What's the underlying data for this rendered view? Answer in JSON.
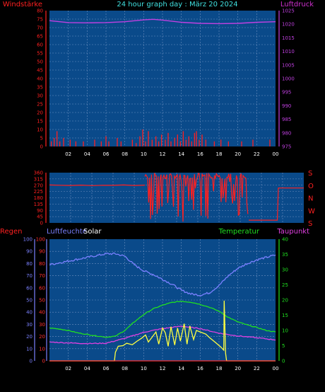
{
  "header": {
    "title": "24 hour graph day : März 20 2024",
    "left_label": "Windstärke",
    "right_label": "Luftdruck"
  },
  "bottom_labels": {
    "regen": "Regen",
    "luftfeuchte": "Luftfeuchte",
    "solar": "Solar",
    "temperatur": "Temperatur",
    "taupunkt": "Taupunkt"
  },
  "direction_labels": [
    "S",
    "O",
    "N",
    "W",
    "S"
  ],
  "colors": {
    "background": "#000000",
    "plot_bg": "#0a4a8a",
    "grid": "#6d8fbf",
    "wind": "#ff2020",
    "pressure": "#c040e0",
    "direction": "#ff2020",
    "humidity": "#7a80ff",
    "solar": "#ffff40",
    "temperature": "#20e020",
    "dewpoint": "#e040e0",
    "rain": "#ff3030"
  },
  "chart_data": [
    {
      "type": "bar",
      "title": "24 hour graph day : März 20 2024",
      "x_ticks": [
        "02",
        "04",
        "06",
        "08",
        "10",
        "12",
        "14",
        "16",
        "18",
        "20",
        "22",
        "00"
      ],
      "x_range_hours": [
        0,
        24
      ],
      "grid": true,
      "y_left": {
        "label": "Windstärke",
        "ticks": [
          0,
          5,
          10,
          15,
          20,
          25,
          30,
          35,
          40,
          45,
          50,
          55,
          60,
          65,
          70,
          75,
          80
        ],
        "range": [
          0,
          80
        ]
      },
      "y_right": {
        "label": "Luftdruck",
        "ticks": [
          975,
          980,
          985,
          990,
          995,
          1000,
          1005,
          1010,
          1015,
          1020,
          1025
        ],
        "range": [
          975,
          1025
        ]
      },
      "series": [
        {
          "name": "Windstärke",
          "type": "bar",
          "axis": "left",
          "points": [
            [
              0.2,
              3
            ],
            [
              0.5,
              5
            ],
            [
              0.8,
              9
            ],
            [
              1.1,
              3
            ],
            [
              1.5,
              5
            ],
            [
              2.2,
              4
            ],
            [
              2.8,
              3
            ],
            [
              3.6,
              3
            ],
            [
              4.8,
              4
            ],
            [
              5.5,
              3
            ],
            [
              6,
              6
            ],
            [
              6.3,
              3
            ],
            [
              7.2,
              5
            ],
            [
              7.6,
              3
            ],
            [
              8.8,
              4
            ],
            [
              9.2,
              2
            ],
            [
              9.6,
              6
            ],
            [
              9.9,
              10
            ],
            [
              10.2,
              3
            ],
            [
              10.5,
              9
            ],
            [
              10.9,
              4
            ],
            [
              11.3,
              6
            ],
            [
              11.6,
              3
            ],
            [
              11.9,
              7
            ],
            [
              12.3,
              4
            ],
            [
              12.6,
              8
            ],
            [
              12.9,
              3
            ],
            [
              13.3,
              5
            ],
            [
              13.6,
              7
            ],
            [
              13.9,
              3
            ],
            [
              14.2,
              9
            ],
            [
              14.5,
              4
            ],
            [
              14.8,
              6
            ],
            [
              15.1,
              3
            ],
            [
              15.4,
              8
            ],
            [
              15.6,
              9
            ],
            [
              15.9,
              4
            ],
            [
              16.2,
              7
            ],
            [
              16.6,
              4
            ],
            [
              17.5,
              3
            ],
            [
              18.2,
              4
            ],
            [
              19,
              3
            ],
            [
              20.4,
              3
            ],
            [
              21.6,
              4
            ],
            [
              23.4,
              4
            ]
          ]
        },
        {
          "name": "Luftdruck",
          "type": "line",
          "axis": "right",
          "points": [
            [
              0,
              1021.3
            ],
            [
              2,
              1020.6
            ],
            [
              4,
              1020.5
            ],
            [
              6,
              1020.6
            ],
            [
              8,
              1020.9
            ],
            [
              10,
              1021.6
            ],
            [
              11,
              1021.8
            ],
            [
              12,
              1021.5
            ],
            [
              14,
              1020.7
            ],
            [
              16,
              1020.3
            ],
            [
              18,
              1020.2
            ],
            [
              20,
              1020.3
            ],
            [
              22,
              1020.7
            ],
            [
              24,
              1020.9
            ]
          ]
        }
      ]
    },
    {
      "type": "line",
      "x_range_hours": [
        0,
        24
      ],
      "grid": true,
      "y_left": {
        "ticks": [
          0,
          45,
          90,
          135,
          180,
          225,
          270,
          315,
          360
        ],
        "range": [
          0,
          360
        ]
      },
      "y_right": {
        "labels": [
          "S",
          "O",
          "N",
          "W",
          "S"
        ]
      },
      "series": [
        {
          "name": "Windrichtung",
          "points": [
            [
              0,
              272
            ],
            [
              1,
              270
            ],
            [
              2,
              268
            ],
            [
              3,
              271
            ],
            [
              4,
              267
            ],
            [
              5,
              270
            ],
            [
              6,
              269
            ],
            [
              7,
              272
            ],
            [
              8,
              268
            ],
            [
              9,
              271
            ],
            [
              9.6,
              275
            ],
            [
              10,
              285
            ],
            [
              11,
              300
            ],
            [
              12,
              290
            ],
            [
              13,
              300
            ],
            [
              14,
              295
            ],
            [
              15,
              290
            ],
            [
              16,
              300
            ],
            [
              17,
              295
            ],
            [
              18,
              300
            ],
            [
              18.7,
              290
            ],
            [
              18.8,
              20
            ],
            [
              20,
              20
            ],
            [
              21,
              20
            ],
            [
              21.5,
              20
            ],
            [
              21.6,
              250
            ],
            [
              22,
              250
            ],
            [
              23,
              250
            ],
            [
              24,
              250
            ]
          ],
          "scatter_band": {
            "from_hour": 9,
            "to_hour": 18.8,
            "min": 0,
            "max": 355
          }
        }
      ]
    },
    {
      "type": "line",
      "x_ticks": [
        "02",
        "04",
        "06",
        "08",
        "10",
        "12",
        "14",
        "16",
        "18",
        "20",
        "22",
        "00"
      ],
      "x_range_hours": [
        0,
        24
      ],
      "grid": true,
      "y_axes": {
        "regen": {
          "label": "Regen",
          "ticks": [
            0,
            10,
            20,
            30,
            40,
            50,
            60,
            70,
            80,
            90,
            100
          ],
          "range": [
            0,
            100
          ]
        },
        "luftfeuchte": {
          "label": "Luftfeuchte",
          "ticks": [
            0,
            10,
            20,
            30,
            40,
            50,
            60,
            70,
            80,
            90,
            100
          ],
          "range": [
            0,
            100
          ]
        },
        "temperatur": {
          "label": "Temperatur",
          "ticks": [
            0,
            5,
            10,
            15,
            20,
            25,
            30,
            35,
            40
          ],
          "range": [
            0,
            40
          ]
        }
      },
      "series": [
        {
          "name": "Luftfeuchte",
          "axis": "luftfeuchte",
          "points": [
            [
              0,
              79
            ],
            [
              2,
              82
            ],
            [
              4,
              85
            ],
            [
              6,
              88
            ],
            [
              7,
              88
            ],
            [
              8,
              86
            ],
            [
              9,
              79
            ],
            [
              10,
              74
            ],
            [
              11,
              71
            ],
            [
              12,
              67
            ],
            [
              13,
              63
            ],
            [
              14,
              58
            ],
            [
              15,
              55
            ],
            [
              16,
              54
            ],
            [
              17,
              56
            ],
            [
              18,
              62
            ],
            [
              19,
              70
            ],
            [
              20,
              76
            ],
            [
              21,
              80
            ],
            [
              22,
              83
            ],
            [
              23,
              85
            ],
            [
              24,
              87
            ]
          ]
        },
        {
          "name": "Temperatur",
          "axis": "temperatur",
          "points": [
            [
              0,
              10.8
            ],
            [
              1,
              10.5
            ],
            [
              2,
              10
            ],
            [
              3,
              9.2
            ],
            [
              4,
              8.7
            ],
            [
              5,
              8.2
            ],
            [
              6,
              7.8
            ],
            [
              7,
              8.1
            ],
            [
              8,
              10
            ],
            [
              9,
              12.8
            ],
            [
              10,
              15.2
            ],
            [
              11,
              17.1
            ],
            [
              12,
              18.3
            ],
            [
              13,
              19.2
            ],
            [
              14,
              19.6
            ],
            [
              15,
              19.3
            ],
            [
              16,
              18.6
            ],
            [
              17,
              17.6
            ],
            [
              18,
              16.3
            ],
            [
              19,
              14.3
            ],
            [
              20,
              12.8
            ],
            [
              21,
              11.8
            ],
            [
              22,
              11
            ],
            [
              23,
              10
            ],
            [
              24,
              9.5
            ]
          ]
        },
        {
          "name": "Taupunkt",
          "axis": "temperatur",
          "points": [
            [
              0,
              6.2
            ],
            [
              2,
              5.9
            ],
            [
              4,
              5.7
            ],
            [
              6,
              5.8
            ],
            [
              8,
              7.4
            ],
            [
              10,
              9.4
            ],
            [
              12,
              10.6
            ],
            [
              14,
              11.4
            ],
            [
              16,
              10.6
            ],
            [
              18,
              9.1
            ],
            [
              20,
              8.2
            ],
            [
              22,
              7.6
            ],
            [
              24,
              6.9
            ]
          ]
        },
        {
          "name": "Solar",
          "axis": "temperatur",
          "points": [
            [
              0,
              0
            ],
            [
              6.9,
              0
            ],
            [
              7,
              2.8
            ],
            [
              7.3,
              4.8
            ],
            [
              7.8,
              5
            ],
            [
              8.2,
              5.8
            ],
            [
              8.8,
              5.3
            ],
            [
              9.3,
              6.5
            ],
            [
              9.8,
              7.5
            ],
            [
              10.2,
              8.5
            ],
            [
              10.5,
              6.2
            ],
            [
              10.9,
              7.8
            ],
            [
              11.3,
              9.5
            ],
            [
              11.6,
              5.5
            ],
            [
              12,
              10.8
            ],
            [
              12.3,
              9.2
            ],
            [
              12.6,
              4.8
            ],
            [
              12.9,
              11.2
            ],
            [
              13.3,
              5.2
            ],
            [
              13.6,
              10.8
            ],
            [
              13.9,
              6.5
            ],
            [
              14.3,
              12.2
            ],
            [
              14.6,
              5.5
            ],
            [
              14.9,
              11.5
            ],
            [
              15.3,
              7
            ],
            [
              15.6,
              10
            ],
            [
              16,
              9.5
            ],
            [
              16.6,
              8.8
            ],
            [
              17,
              7.6
            ],
            [
              17.6,
              6.1
            ],
            [
              18.2,
              4.5
            ],
            [
              18.5,
              3.5
            ],
            [
              18.55,
              19.8
            ],
            [
              18.7,
              2.5
            ],
            [
              18.8,
              0
            ],
            [
              24,
              0
            ]
          ]
        },
        {
          "name": "Regen",
          "axis": "regen",
          "points": [
            [
              0,
              0
            ],
            [
              24,
              0
            ]
          ]
        }
      ]
    }
  ]
}
